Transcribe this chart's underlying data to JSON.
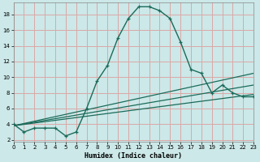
{
  "title": "",
  "xlabel": "Humidex (Indice chaleur)",
  "bg_color": "#cce8e8",
  "grid_color": "#dba8a8",
  "line_color": "#1a6b5a",
  "line1": {
    "x": [
      0,
      1,
      2,
      3,
      4,
      5,
      6,
      7,
      8,
      9,
      10,
      11,
      12,
      13,
      14,
      15,
      16,
      17,
      18,
      19,
      20,
      21,
      22,
      23
    ],
    "y": [
      4.0,
      3.0,
      3.5,
      3.5,
      3.5,
      2.5,
      3.0,
      6.0,
      9.5,
      11.5,
      15.0,
      17.5,
      19.0,
      19.0,
      18.5,
      17.5,
      14.5,
      11.0,
      10.5,
      8.0,
      9.0,
      8.0,
      7.5,
      7.5
    ]
  },
  "line2": {
    "x": [
      0,
      23
    ],
    "y": [
      3.8,
      10.5
    ]
  },
  "line3": {
    "x": [
      0,
      23
    ],
    "y": [
      3.8,
      7.8
    ]
  },
  "line4": {
    "x": [
      0,
      23
    ],
    "y": [
      3.8,
      9.0
    ]
  },
  "xlim": [
    0,
    23
  ],
  "ylim": [
    1.8,
    19.5
  ],
  "yticks": [
    2,
    4,
    6,
    8,
    10,
    12,
    14,
    16,
    18
  ],
  "xticks": [
    0,
    1,
    2,
    3,
    4,
    5,
    6,
    7,
    8,
    9,
    10,
    11,
    12,
    13,
    14,
    15,
    16,
    17,
    18,
    19,
    20,
    21,
    22,
    23
  ],
  "tick_fontsize": 5.0,
  "xlabel_fontsize": 6.0
}
